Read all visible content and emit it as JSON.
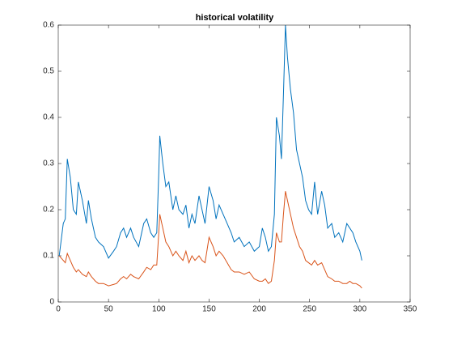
{
  "chart_data": {
    "type": "line",
    "title": "historical volatility",
    "x": [
      1,
      5,
      7,
      9,
      12,
      15,
      18,
      20,
      24,
      28,
      30,
      33,
      37,
      40,
      45,
      50,
      55,
      58,
      62,
      65,
      68,
      72,
      75,
      80,
      85,
      88,
      92,
      95,
      98,
      100,
      101,
      104,
      107,
      110,
      114,
      117,
      120,
      124,
      127,
      130,
      133,
      136,
      140,
      143,
      146,
      150,
      154,
      157,
      160,
      164,
      168,
      172,
      175,
      180,
      185,
      190,
      195,
      200,
      203,
      206,
      209,
      212,
      215,
      217,
      220,
      222,
      224,
      226,
      228,
      231,
      234,
      237,
      240,
      243,
      246,
      249,
      252,
      255,
      258,
      262,
      265,
      268,
      272,
      275,
      279,
      283,
      287,
      290,
      293,
      296,
      300,
      302
    ],
    "series": [
      {
        "color": "#0072bd",
        "values": [
          0.1,
          0.17,
          0.18,
          0.31,
          0.27,
          0.2,
          0.19,
          0.26,
          0.22,
          0.17,
          0.22,
          0.18,
          0.14,
          0.13,
          0.12,
          0.095,
          0.11,
          0.12,
          0.15,
          0.16,
          0.14,
          0.16,
          0.14,
          0.12,
          0.17,
          0.18,
          0.15,
          0.14,
          0.15,
          0.28,
          0.36,
          0.3,
          0.25,
          0.26,
          0.2,
          0.23,
          0.2,
          0.19,
          0.21,
          0.16,
          0.19,
          0.17,
          0.23,
          0.2,
          0.17,
          0.25,
          0.22,
          0.18,
          0.21,
          0.19,
          0.17,
          0.15,
          0.13,
          0.14,
          0.12,
          0.13,
          0.11,
          0.12,
          0.16,
          0.14,
          0.11,
          0.12,
          0.19,
          0.4,
          0.36,
          0.31,
          0.45,
          0.6,
          0.53,
          0.46,
          0.41,
          0.33,
          0.3,
          0.27,
          0.22,
          0.2,
          0.19,
          0.26,
          0.19,
          0.24,
          0.21,
          0.16,
          0.17,
          0.14,
          0.15,
          0.13,
          0.17,
          0.16,
          0.15,
          0.13,
          0.11,
          0.09
        ]
      },
      {
        "color": "#d95319",
        "values": [
          0.1,
          0.09,
          0.085,
          0.105,
          0.09,
          0.075,
          0.065,
          0.07,
          0.06,
          0.055,
          0.065,
          0.055,
          0.045,
          0.04,
          0.04,
          0.035,
          0.038,
          0.04,
          0.05,
          0.055,
          0.05,
          0.06,
          0.055,
          0.05,
          0.065,
          0.075,
          0.07,
          0.08,
          0.08,
          0.15,
          0.19,
          0.16,
          0.13,
          0.12,
          0.1,
          0.11,
          0.1,
          0.09,
          0.11,
          0.085,
          0.1,
          0.09,
          0.1,
          0.09,
          0.085,
          0.14,
          0.12,
          0.1,
          0.11,
          0.1,
          0.085,
          0.07,
          0.065,
          0.065,
          0.06,
          0.065,
          0.05,
          0.045,
          0.045,
          0.05,
          0.04,
          0.045,
          0.09,
          0.15,
          0.13,
          0.13,
          0.19,
          0.24,
          0.22,
          0.19,
          0.16,
          0.14,
          0.12,
          0.11,
          0.09,
          0.085,
          0.08,
          0.09,
          0.08,
          0.085,
          0.07,
          0.055,
          0.05,
          0.045,
          0.045,
          0.04,
          0.04,
          0.045,
          0.04,
          0.04,
          0.035,
          0.03
        ]
      }
    ],
    "xlim": [
      0,
      350
    ],
    "xticks": [
      0,
      50,
      100,
      150,
      200,
      250,
      300,
      350
    ],
    "ylim": [
      0,
      0.6
    ],
    "yticks": [
      0,
      0.1,
      0.2,
      0.3,
      0.4,
      0.5,
      0.6
    ]
  }
}
